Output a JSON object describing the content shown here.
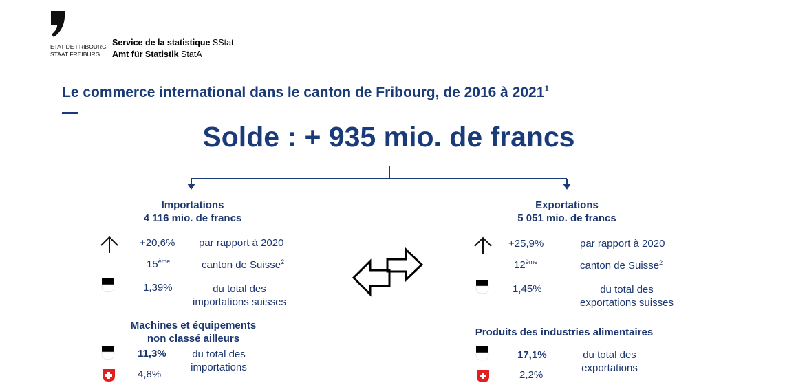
{
  "header": {
    "org_fr": "ETAT DE FRIBOURG",
    "org_de": "STAAT FREIBURG",
    "service_fr_bold": "Service de la statistique",
    "service_fr_abbr": "SStat",
    "service_de_bold": "Amt für Statistik",
    "service_de_abbr": "StatA"
  },
  "title": "Le commerce international dans le canton de Fribourg, de 2016 à 2021",
  "title_note": "1",
  "balance": "Solde : + 935 mio. de francs",
  "imports": {
    "heading": "Importations",
    "amount": "4 116 mio. de francs",
    "growth": "+20,6%",
    "growth_label": "par rapport à 2020",
    "rank": "15",
    "rank_suffix": "ème",
    "rank_label": "canton de Suisse",
    "rank_note": "2",
    "share": "1,39%",
    "share_label_1": "du total des",
    "share_label_2": "importations suisses",
    "top_heading_1": "Machines et équipements",
    "top_heading_2": "non classé ailleurs",
    "top_fr": "11,3%",
    "top_ch": "4,8%",
    "top_label_1": "du total des",
    "top_label_2": "importations"
  },
  "exports": {
    "heading": "Exportations",
    "amount": "5 051 mio. de francs",
    "growth": "+25,9%",
    "growth_label": "par rapport à 2020",
    "rank": "12",
    "rank_suffix": "ème",
    "rank_label": "canton de Suisse",
    "rank_note": "2",
    "share": "1,45%",
    "share_label_1": "du total des",
    "share_label_2": "exportations suisses",
    "top_heading_1": "Produits des industries alimentaires",
    "top_fr": "17,1%",
    "top_ch": "2,2%",
    "top_label_1": "du total des",
    "top_label_2": "exportations"
  }
}
